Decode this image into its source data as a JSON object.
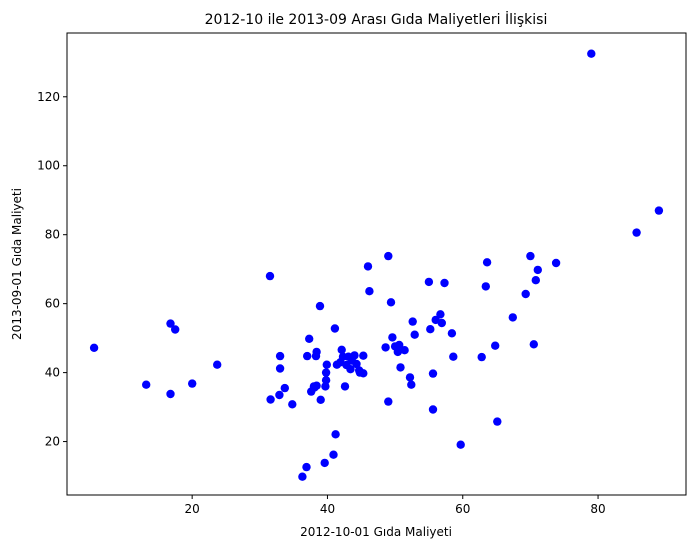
{
  "chart_data": {
    "type": "scatter",
    "title": "2012-10 ile 2013-09 Arası Gıda Maliyetleri İlişkisi",
    "xlabel": "2012-10-01 Gıda Maliyeti",
    "ylabel": "2013-09-01 Gıda Maliyeti",
    "xlim": [
      1.5,
      93.0
    ],
    "ylim": [
      4.5,
      138.5
    ],
    "xticks": [
      20,
      40,
      60,
      80
    ],
    "yticks": [
      20,
      40,
      60,
      80,
      100,
      120
    ],
    "grid": false,
    "marker_color": "#0000ff",
    "points": [
      [
        5.5,
        47.2
      ],
      [
        13.2,
        36.5
      ],
      [
        16.8,
        54.2
      ],
      [
        17.5,
        52.5
      ],
      [
        16.8,
        33.8
      ],
      [
        20.0,
        36.8
      ],
      [
        23.7,
        42.3
      ],
      [
        31.5,
        68.0
      ],
      [
        31.6,
        32.2
      ],
      [
        32.9,
        33.5
      ],
      [
        33.0,
        44.8
      ],
      [
        33.0,
        41.2
      ],
      [
        33.7,
        35.5
      ],
      [
        34.8,
        30.8
      ],
      [
        36.3,
        9.8
      ],
      [
        36.9,
        12.6
      ],
      [
        37.0,
        44.8
      ],
      [
        37.3,
        49.8
      ],
      [
        37.6,
        34.5
      ],
      [
        38.0,
        36.0
      ],
      [
        38.3,
        44.8
      ],
      [
        38.4,
        46.0
      ],
      [
        38.1,
        35.7
      ],
      [
        38.4,
        36.2
      ],
      [
        38.9,
        59.3
      ],
      [
        39.0,
        32.1
      ],
      [
        39.6,
        13.8
      ],
      [
        39.8,
        37.8
      ],
      [
        39.7,
        36.0
      ],
      [
        39.8,
        40.0
      ],
      [
        39.9,
        42.3
      ],
      [
        40.9,
        16.2
      ],
      [
        41.2,
        22.1
      ],
      [
        41.1,
        52.8
      ],
      [
        41.4,
        42.3
      ],
      [
        41.9,
        43.0
      ],
      [
        42.1,
        46.6
      ],
      [
        42.3,
        44.6
      ],
      [
        42.6,
        36.0
      ],
      [
        42.8,
        42.2
      ],
      [
        43.1,
        44.6
      ],
      [
        43.4,
        41.0
      ],
      [
        43.6,
        43.5
      ],
      [
        44.0,
        45.0
      ],
      [
        44.3,
        42.5
      ],
      [
        44.7,
        40.6
      ],
      [
        44.8,
        40.0
      ],
      [
        45.3,
        39.8
      ],
      [
        45.3,
        44.9
      ],
      [
        46.0,
        70.8
      ],
      [
        46.2,
        63.6
      ],
      [
        48.6,
        47.3
      ],
      [
        49.0,
        31.6
      ],
      [
        49.0,
        73.8
      ],
      [
        49.4,
        60.4
      ],
      [
        49.6,
        50.2
      ],
      [
        50.0,
        47.6
      ],
      [
        50.4,
        46.0
      ],
      [
        50.6,
        48.0
      ],
      [
        50.8,
        41.5
      ],
      [
        51.4,
        46.5
      ],
      [
        52.2,
        38.6
      ],
      [
        52.4,
        36.5
      ],
      [
        52.6,
        54.8
      ],
      [
        52.9,
        51.0
      ],
      [
        55.0,
        66.3
      ],
      [
        55.2,
        52.6
      ],
      [
        55.6,
        29.3
      ],
      [
        55.6,
        39.7
      ],
      [
        56.0,
        55.3
      ],
      [
        56.7,
        56.9
      ],
      [
        56.9,
        54.4
      ],
      [
        57.3,
        66.0
      ],
      [
        58.4,
        51.4
      ],
      [
        58.6,
        44.6
      ],
      [
        59.7,
        19.1
      ],
      [
        62.8,
        44.5
      ],
      [
        63.4,
        65.0
      ],
      [
        63.6,
        72.0
      ],
      [
        64.8,
        47.8
      ],
      [
        65.1,
        25.8
      ],
      [
        67.4,
        56.0
      ],
      [
        69.3,
        62.8
      ],
      [
        70.0,
        73.8
      ],
      [
        70.5,
        48.2
      ],
      [
        70.8,
        66.8
      ],
      [
        71.1,
        69.8
      ],
      [
        73.8,
        71.8
      ],
      [
        79.0,
        132.5
      ],
      [
        85.7,
        80.6
      ],
      [
        89.0,
        87.0
      ]
    ]
  }
}
